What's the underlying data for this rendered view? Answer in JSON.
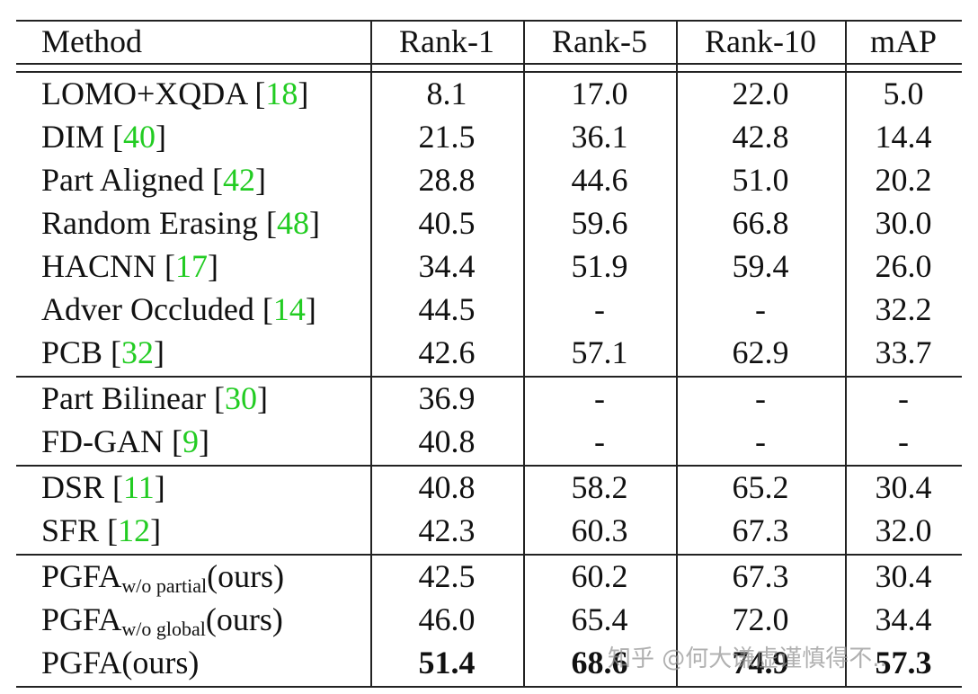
{
  "table": {
    "header": [
      "Method",
      "Rank-1",
      "Rank-5",
      "Rank-10",
      "mAP"
    ],
    "groups": [
      {
        "rows": [
          {
            "method": {
              "name": "LOMO+XQDA ",
              "cite": [
                "[",
                "18",
                "]"
              ]
            },
            "values": [
              "8.1",
              "17.0",
              "22.0",
              "5.0"
            ]
          },
          {
            "method": {
              "name": "DIM ",
              "cite": [
                "[",
                "40",
                "]"
              ]
            },
            "values": [
              "21.5",
              "36.1",
              "42.8",
              "14.4"
            ]
          },
          {
            "method": {
              "name": "Part Aligned ",
              "cite": [
                "[",
                "42",
                "]"
              ]
            },
            "values": [
              "28.8",
              "44.6",
              "51.0",
              "20.2"
            ]
          },
          {
            "method": {
              "name": "Random Erasing ",
              "cite": [
                "[",
                "48",
                "]"
              ]
            },
            "values": [
              "40.5",
              "59.6",
              "66.8",
              "30.0"
            ]
          },
          {
            "method": {
              "name": "HACNN ",
              "cite": [
                "[",
                "17",
                "]"
              ]
            },
            "values": [
              "34.4",
              "51.9",
              "59.4",
              "26.0"
            ]
          },
          {
            "method": {
              "name": "Adver Occluded ",
              "cite": [
                "[",
                "14",
                "]"
              ]
            },
            "values": [
              "44.5",
              "-",
              "-",
              "32.2"
            ]
          },
          {
            "method": {
              "name": "PCB ",
              "cite": [
                "[",
                "32",
                "]"
              ]
            },
            "values": [
              "42.6",
              "57.1",
              "62.9",
              "33.7"
            ]
          }
        ]
      },
      {
        "rows": [
          {
            "method": {
              "name": "Part Bilinear ",
              "cite": [
                "[",
                "30",
                "]"
              ]
            },
            "values": [
              "36.9",
              "-",
              "-",
              "-"
            ]
          },
          {
            "method": {
              "name": "FD-GAN ",
              "cite": [
                "[",
                "9",
                "]"
              ]
            },
            "values": [
              "40.8",
              "-",
              "-",
              "-"
            ]
          }
        ]
      },
      {
        "rows": [
          {
            "method": {
              "name": "DSR ",
              "cite": [
                "[",
                "11",
                "]"
              ]
            },
            "values": [
              "40.8",
              "58.2",
              "65.2",
              "30.4"
            ]
          },
          {
            "method": {
              "name": "SFR ",
              "cite": [
                "[",
                "12",
                "]"
              ]
            },
            "values": [
              "42.3",
              "60.3",
              "67.3",
              "32.0"
            ]
          }
        ]
      },
      {
        "rows": [
          {
            "method": {
              "name": "PGFA",
              "sub": "w/o partial",
              "suffix": "(ours)"
            },
            "values": [
              "42.5",
              "60.2",
              "67.3",
              "30.4"
            ]
          },
          {
            "method": {
              "name": "PGFA",
              "sub": "w/o global",
              "suffix": "(ours)"
            },
            "values": [
              "46.0",
              "65.4",
              "72.0",
              "34.4"
            ]
          },
          {
            "method": {
              "name": "PGFA",
              "suffix": "(ours)"
            },
            "values": [
              "51.4",
              "68.6",
              "74.9",
              "57.3"
            ],
            "bold": true
          }
        ]
      }
    ]
  },
  "watermark": "知乎 @何大谦虚谨慎得不.."
}
